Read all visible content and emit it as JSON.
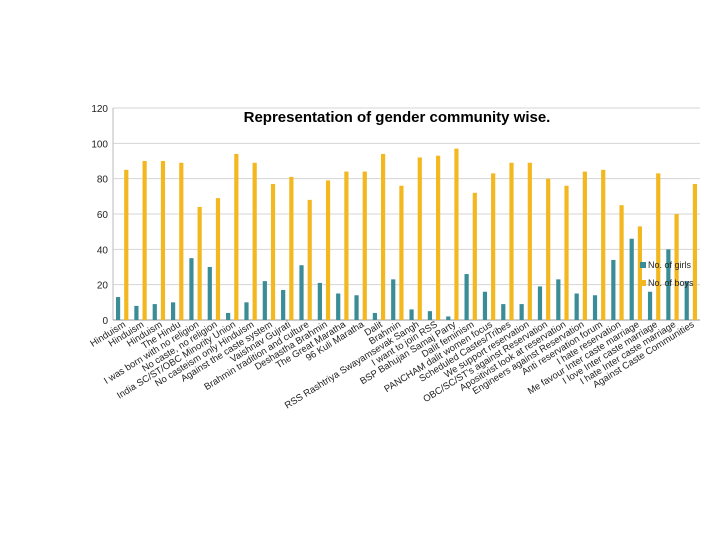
{
  "chart_data": {
    "type": "bar",
    "title": "Representation of gender community wise.",
    "xlabel": "",
    "ylabel": "",
    "ylim": [
      0,
      120
    ],
    "yticks": [
      0,
      20,
      40,
      60,
      80,
      100,
      120
    ],
    "gridlines": true,
    "legend_position": "right",
    "categories": [
      "Hinduism",
      "Hinduism",
      "Hinduism",
      "The Hindu",
      "I was born with no religion",
      "No caste, no religion",
      "India SC/ST/OBC Minority Union",
      "No casteism only Hinduism",
      "Against the caste system",
      "Vaishnav Gujrati",
      "Brahmin tradition and culture",
      "Deshastha Brahmin",
      "The Great Maratha",
      "96 Kuli Maratha",
      "Dalit",
      "Brahmin",
      "RSS Rashtriya Swayamsevak Sangh",
      "I want to join RSS",
      "BSP Bahujan Samaj Party",
      "Dalit feminism",
      "PANCHAM dalit women focus",
      "Scheduled Castes/Tribes",
      "We support reservation",
      "OBC/SC/ST's against Reservation",
      "Apositivist look at reservation",
      "Engineers against Reservation",
      "Anti reservation forum",
      "I hate reservation",
      "Me favour Inter caste marriage",
      "I love Inter caste marriage",
      "I hate Inter caste marriage",
      "Against Caste Communities"
    ],
    "series": [
      {
        "name": "No. of girls",
        "color": "#3a8c96",
        "values": [
          13,
          8,
          9,
          10,
          35,
          30,
          4,
          10,
          22,
          17,
          31,
          21,
          15,
          14,
          4,
          23,
          6,
          5,
          2,
          26,
          16,
          9,
          9,
          19,
          23,
          15,
          14,
          34,
          46,
          16,
          40,
          22
        ]
      },
      {
        "name": "No. of boys",
        "color": "#f3b820",
        "values": [
          85,
          90,
          90,
          89,
          64,
          69,
          94,
          89,
          77,
          81,
          68,
          79,
          84,
          84,
          94,
          76,
          92,
          93,
          97,
          72,
          83,
          89,
          89,
          80,
          76,
          84,
          85,
          65,
          53,
          83,
          60,
          77
        ]
      }
    ]
  }
}
